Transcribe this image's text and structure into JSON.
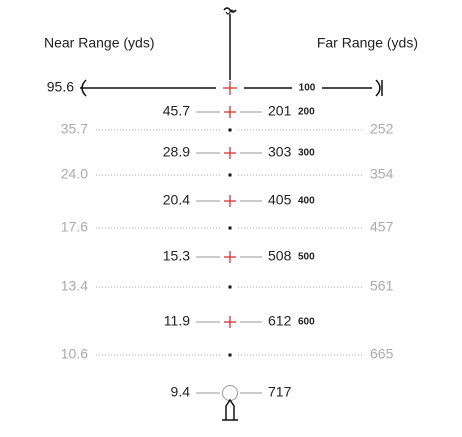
{
  "header": {
    "near_label": "Near Range (yds)",
    "far_label": "Far Range (yds)"
  },
  "top": {
    "near": "95.6",
    "mark": "100"
  },
  "rows": [
    {
      "near": "45.7",
      "far": "201",
      "mark": "200"
    },
    {
      "near": "28.9",
      "far": "303",
      "mark": "300"
    },
    {
      "near": "20.4",
      "far": "405",
      "mark": "400"
    },
    {
      "near": "15.3",
      "far": "508",
      "mark": "500"
    },
    {
      "near": "11.9",
      "far": "612",
      "mark": "600"
    }
  ],
  "dotted_rows": [
    {
      "near": "35.7",
      "far": "252"
    },
    {
      "near": "24.0",
      "far": "354"
    },
    {
      "near": "17.6",
      "far": "457"
    },
    {
      "near": "13.4",
      "far": "561"
    },
    {
      "near": "10.6",
      "far": "665"
    }
  ],
  "bottom": {
    "near": "9.4",
    "far": "717"
  }
}
